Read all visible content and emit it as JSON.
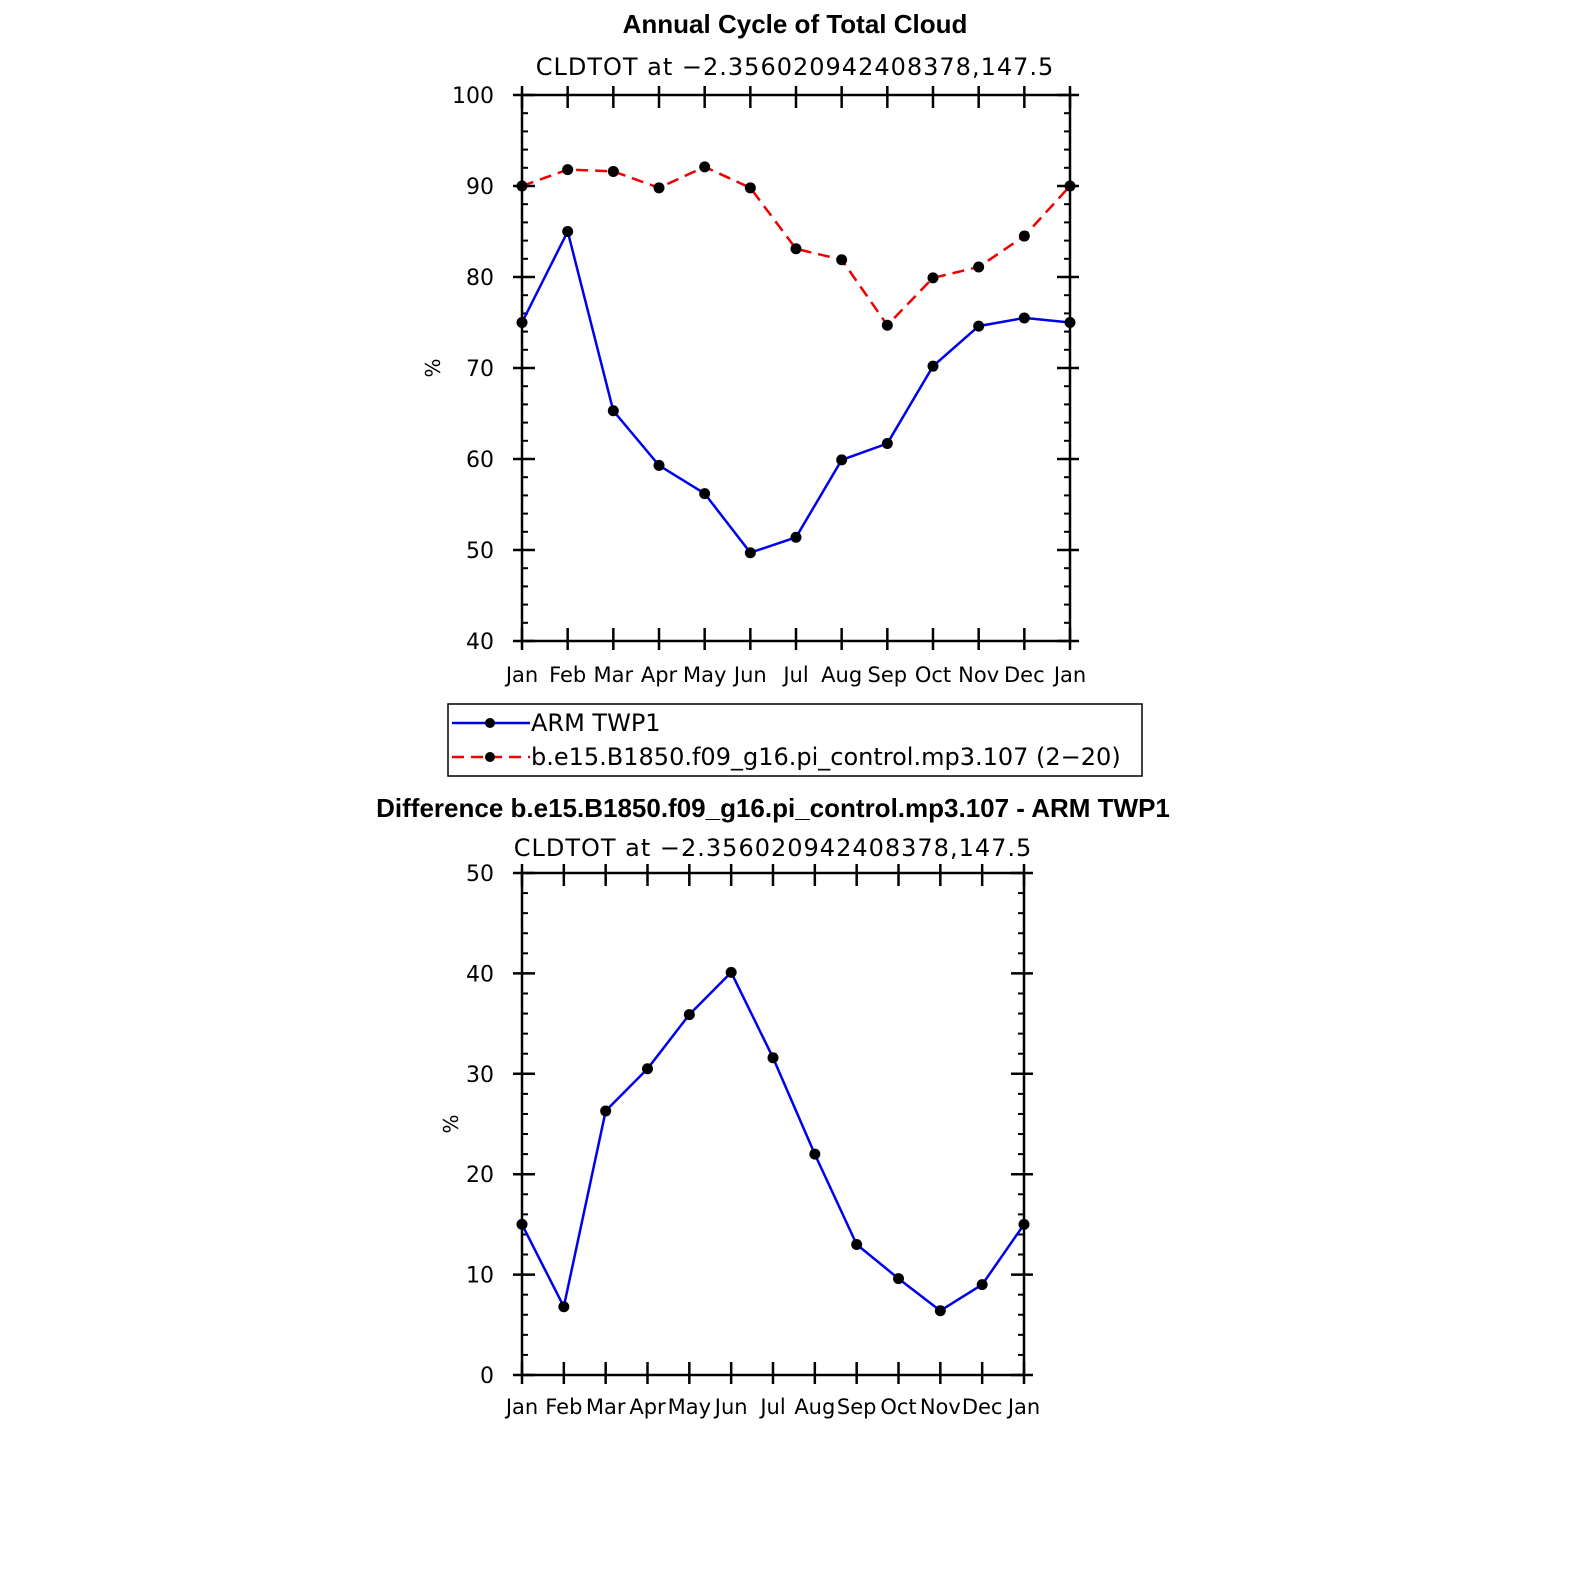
{
  "chart_data": [
    {
      "type": "line",
      "title": "Annual Cycle of Total Cloud",
      "subtitle": "CLDTOT at −2.356020942408378,147.5",
      "xlabel": "",
      "ylabel": "%",
      "categories": [
        "Jan",
        "Feb",
        "Mar",
        "Apr",
        "May",
        "Jun",
        "Jul",
        "Aug",
        "Sep",
        "Oct",
        "Nov",
        "Dec",
        "Jan"
      ],
      "ylim": [
        40,
        100
      ],
      "yticks": [
        40,
        50,
        60,
        70,
        80,
        90,
        100
      ],
      "series": [
        {
          "name": "ARM TWP1",
          "color": "#0000ee",
          "dash": "solid",
          "values": [
            75.0,
            85.0,
            65.3,
            59.3,
            56.2,
            49.7,
            51.4,
            59.9,
            61.7,
            70.2,
            74.6,
            75.5,
            75.0
          ]
        },
        {
          "name": "b.e15.B1850.f09_g16.pi_control.mp3.107 (2−20)",
          "color": "#ee0000",
          "dash": "dashed",
          "values": [
            90.0,
            91.8,
            91.6,
            89.8,
            92.1,
            89.8,
            83.1,
            81.9,
            74.7,
            79.9,
            81.1,
            84.5,
            90.0
          ]
        }
      ],
      "legend_position": "below"
    },
    {
      "type": "line",
      "title": "Difference b.e15.B1850.f09_g16.pi_control.mp3.107 - ARM TWP1",
      "subtitle": "CLDTOT at −2.356020942408378,147.5",
      "xlabel": "",
      "ylabel": "%",
      "categories": [
        "Jan",
        "Feb",
        "Mar",
        "Apr",
        "May",
        "Jun",
        "Jul",
        "Aug",
        "Sep",
        "Oct",
        "Nov",
        "Dec",
        "Jan"
      ],
      "ylim": [
        0,
        50
      ],
      "yticks": [
        0,
        10,
        20,
        30,
        40,
        50
      ],
      "series": [
        {
          "name": "Difference",
          "color": "#0000ee",
          "dash": "solid",
          "values": [
            15.0,
            6.8,
            26.3,
            30.5,
            35.9,
            40.1,
            31.6,
            22.0,
            13.0,
            9.6,
            6.4,
            9.0,
            15.0
          ]
        }
      ]
    }
  ]
}
